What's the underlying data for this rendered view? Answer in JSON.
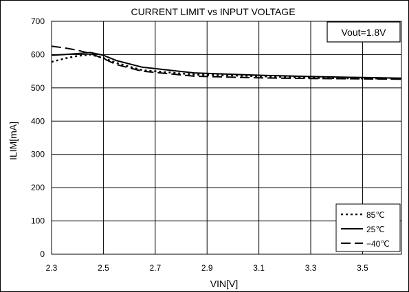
{
  "chart_data": {
    "type": "line",
    "title": "CURRENT LIMIT vs INPUT VOLTAGE",
    "xlabel": "VIN[V]",
    "ylabel": "ILIM[mA]",
    "xlim": [
      2.3,
      3.65
    ],
    "ylim": [
      0,
      700
    ],
    "x_ticks": [
      2.3,
      2.5,
      2.7,
      2.9,
      3.1,
      3.3,
      3.5
    ],
    "x_tick_labels": [
      "2.3",
      "2.5",
      "2.7",
      "2.9",
      "3.1",
      "3.3",
      "3.5"
    ],
    "y_ticks": [
      0,
      100,
      200,
      300,
      400,
      500,
      600,
      700
    ],
    "y_tick_labels": [
      "0",
      "100",
      "200",
      "300",
      "400",
      "500",
      "600",
      "700"
    ],
    "grid": true,
    "legend_position": "bottom-right",
    "annotation": "Vout=1.8V",
    "series": [
      {
        "name": "85℃",
        "style": "dotted",
        "color": "#000000",
        "x": [
          2.3,
          2.35,
          2.4,
          2.45,
          2.5,
          2.55,
          2.65,
          2.85,
          3.1,
          3.3,
          3.5,
          3.65
        ],
        "y": [
          578,
          588,
          596,
          600,
          590,
          575,
          553,
          540,
          535,
          530,
          528,
          528
        ]
      },
      {
        "name": "25℃",
        "style": "solid",
        "color": "#000000",
        "x": [
          2.3,
          2.35,
          2.4,
          2.45,
          2.5,
          2.55,
          2.65,
          2.85,
          3.1,
          3.3,
          3.5,
          3.65
        ],
        "y": [
          598,
          600,
          603,
          606,
          598,
          582,
          562,
          545,
          538,
          534,
          531,
          529
        ]
      },
      {
        "name": "−40℃",
        "style": "dashed",
        "color": "#000000",
        "x": [
          2.3,
          2.35,
          2.4,
          2.45,
          2.5,
          2.55,
          2.65,
          2.85,
          3.1,
          3.3,
          3.5,
          3.65
        ],
        "y": [
          625,
          620,
          613,
          603,
          588,
          570,
          550,
          535,
          530,
          528,
          527,
          526
        ]
      }
    ]
  }
}
